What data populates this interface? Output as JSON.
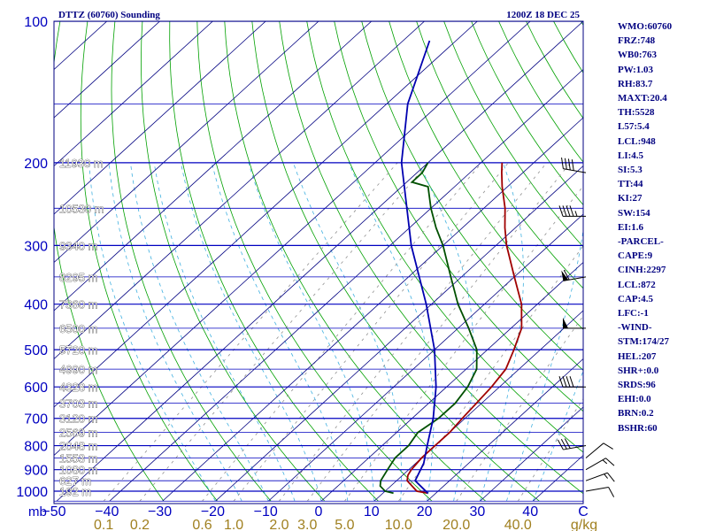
{
  "header": {
    "title": "DTTZ (60760) Sounding",
    "time": "1200Z 18 DEC 25"
  },
  "chart_data": {
    "type": "line",
    "diagram": "skew-T log-P",
    "title": "DTTZ (60760) Sounding",
    "pressure_axis": {
      "ticks": [
        100,
        200,
        300,
        400,
        500,
        600,
        700,
        800,
        900,
        1000
      ],
      "unit_label": "mb",
      "range": [
        100,
        1050
      ]
    },
    "temperature_axis": {
      "ticks": [
        -50,
        -40,
        -30,
        -20,
        -10,
        0,
        10,
        20,
        30,
        40
      ],
      "end_label": "C",
      "range": [
        -50,
        50
      ]
    },
    "mixing_ratio_labels": [
      "0.1",
      "0.2",
      "0.6",
      "1.0",
      "2.0",
      "3.0",
      "5.0",
      "10.0",
      "20.0",
      "40.0"
    ],
    "mixing_ratio_unit": "g/kg",
    "height_levels": [
      {
        "p": 200,
        "label": "11930 m"
      },
      {
        "p": 250,
        "label": "10530 m"
      },
      {
        "p": 300,
        "label": "9340 m"
      },
      {
        "p": 350,
        "label": "8295 m"
      },
      {
        "p": 400,
        "label": "7360 m"
      },
      {
        "p": 450,
        "label": "6500 m"
      },
      {
        "p": 500,
        "label": "5720 m"
      },
      {
        "p": 550,
        "label": "4990 m"
      },
      {
        "p": 600,
        "label": "4328 m"
      },
      {
        "p": 650,
        "label": "3703 m"
      },
      {
        "p": 700,
        "label": "3120 m"
      },
      {
        "p": 750,
        "label": "2569 m"
      },
      {
        "p": 800,
        "label": "2048 m"
      },
      {
        "p": 850,
        "label": "1553 m"
      },
      {
        "p": 900,
        "label": "1080 m"
      },
      {
        "p": 950,
        "label": "627 m"
      },
      {
        "p": 1000,
        "label": "192 m"
      }
    ],
    "series": [
      {
        "name": "Temperature",
        "color": "#a00000",
        "points": [
          [
            1010,
            18.5
          ],
          [
            1000,
            16
          ],
          [
            950,
            12
          ],
          [
            925,
            11
          ],
          [
            900,
            10.5
          ],
          [
            850,
            10
          ],
          [
            800,
            10
          ],
          [
            750,
            10
          ],
          [
            700,
            9.5
          ],
          [
            650,
            9
          ],
          [
            600,
            8.5
          ],
          [
            550,
            7.5
          ],
          [
            500,
            5
          ],
          [
            450,
            2
          ],
          [
            400,
            -3
          ],
          [
            350,
            -10
          ],
          [
            300,
            -18
          ],
          [
            275,
            -22
          ],
          [
            250,
            -26
          ],
          [
            225,
            -31
          ],
          [
            210,
            -34
          ],
          [
            200,
            -36
          ]
        ]
      },
      {
        "name": "Dewpoint",
        "color": "#005000",
        "points": [
          [
            1010,
            12
          ],
          [
            1000,
            10
          ],
          [
            975,
            8
          ],
          [
            950,
            7
          ],
          [
            900,
            6
          ],
          [
            850,
            5
          ],
          [
            800,
            5
          ],
          [
            750,
            4
          ],
          [
            700,
            5
          ],
          [
            650,
            5
          ],
          [
            600,
            4
          ],
          [
            550,
            2
          ],
          [
            500,
            -2
          ],
          [
            450,
            -8
          ],
          [
            400,
            -15
          ],
          [
            350,
            -22
          ],
          [
            300,
            -30
          ],
          [
            275,
            -35
          ],
          [
            250,
            -40
          ],
          [
            225,
            -45
          ],
          [
            220,
            -49
          ],
          [
            210,
            -49
          ],
          [
            200,
            -50
          ]
        ]
      },
      {
        "name": "Parcel",
        "color": "#0000b0",
        "points": [
          [
            1010,
            18.5
          ],
          [
            950,
            13.5
          ],
          [
            872,
            11.5
          ],
          [
            800,
            8.5
          ],
          [
            700,
            4
          ],
          [
            600,
            -2
          ],
          [
            500,
            -10
          ],
          [
            400,
            -21
          ],
          [
            300,
            -36
          ],
          [
            200,
            -55
          ],
          [
            150,
            -66
          ],
          [
            110,
            -75
          ]
        ]
      }
    ],
    "wind_barbs": [
      {
        "p": 1000,
        "dir": 80,
        "spd": 10
      },
      {
        "p": 950,
        "dir": 70,
        "spd": 15
      },
      {
        "p": 900,
        "dir": 60,
        "spd": 15
      },
      {
        "p": 850,
        "dir": 50,
        "spd": 10
      },
      {
        "p": 800,
        "dir": 260,
        "spd": 30
      },
      {
        "p": 600,
        "dir": 270,
        "spd": 40
      },
      {
        "p": 450,
        "dir": 270,
        "spd": 50
      },
      {
        "p": 350,
        "dir": 260,
        "spd": 60
      },
      {
        "p": 260,
        "dir": 270,
        "spd": 45
      },
      {
        "p": 210,
        "dir": 280,
        "spd": 40
      }
    ]
  },
  "indices": [
    "WMO:60760",
    "FRZ:748",
    "WB0:763",
    "PW:1.03",
    "RH:83.7",
    "MAXT:20.4",
    "TH:5528",
    "L57:5.4",
    "LCL:948",
    "LI:4.5",
    "SI:5.3",
    "TT:44",
    "KI:27",
    "SW:154",
    "EI:1.6",
    "-PARCEL-",
    "CAPE:9",
    "CINH:2297",
    "LCL:872",
    "CAP:4.5",
    "LFC:-1",
    "-WIND-",
    "STM:174/27",
    "HEL:207",
    "SHR+:0.0",
    "SRDS:96",
    "EHI:0.0",
    "BRN:0.2",
    "BSHR:60"
  ],
  "colors": {
    "frame": "#000080",
    "isobar": "#0000c0",
    "isotherm": "#000080",
    "dry_adiabat": "#00a000",
    "moist_adiabat": "#40b0e0",
    "mixing_ratio": "#909090",
    "axis_text": "#0000c0",
    "mixing_label": "#a08020",
    "height_text": "#ffffff"
  }
}
